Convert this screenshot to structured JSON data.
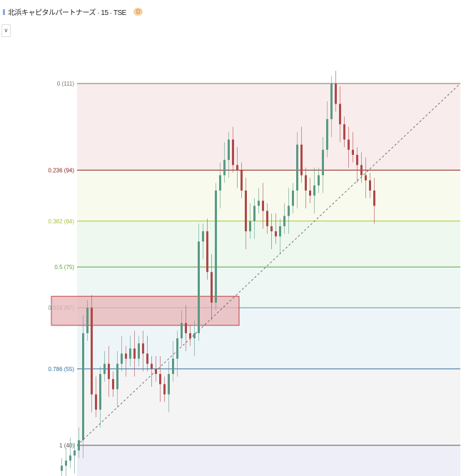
{
  "header": {
    "title": "北浜キャピタルパートナーズ · 15 · TSE",
    "badge": "D",
    "dropdown": "v"
  },
  "chart_data": {
    "type": "candlestick",
    "ylim": [
      36,
      111
    ],
    "fib_levels": [
      {
        "label": "0 (111)",
        "ratio": 0,
        "price": 111,
        "line": "#8a6a6a",
        "fill": "#f8ecec"
      },
      {
        "label": "0.236 (94)",
        "ratio": 0.236,
        "price": 94,
        "line": "#8b1a1a",
        "fill": "#f8faee"
      },
      {
        "label": "0.382 (84)",
        "ratio": 0.382,
        "price": 84,
        "line": "#a6c43a",
        "fill": "#eef8ee"
      },
      {
        "label": "0.5 (75)",
        "ratio": 0.5,
        "price": 75,
        "line": "#5aa03c",
        "fill": "#eef7f4"
      },
      {
        "label": "0.618 (67)",
        "ratio": 0.618,
        "price": 67,
        "line": "#5c9c8c",
        "fill": "#eef5f8"
      },
      {
        "label": "0.786 (55)",
        "ratio": 0.786,
        "price": 55,
        "line": "#2e6e9e",
        "fill": "#f4f4f4"
      },
      {
        "label": "1 (40)",
        "ratio": 1,
        "price": 40,
        "line": "#555555",
        "fill": "#eeeef8"
      }
    ],
    "zone": {
      "from": 62,
      "to": 67,
      "color": "#e8b4b8",
      "border": "#c04040"
    },
    "trendline": {
      "from": 40,
      "to": 111
    },
    "closes": [
      36,
      37,
      38,
      39,
      41,
      62,
      67,
      50,
      47,
      54,
      56,
      53,
      51,
      56,
      58,
      57,
      59,
      57,
      60,
      58,
      56,
      55,
      54,
      52,
      50,
      54,
      57,
      61,
      64,
      62,
      61,
      62,
      80,
      82,
      74,
      68,
      90,
      93,
      96,
      100,
      95,
      94,
      90,
      82,
      84,
      87,
      88,
      86,
      83,
      82,
      81,
      83,
      85,
      87,
      90,
      99,
      93,
      90,
      89,
      91,
      93,
      98,
      104,
      111,
      107,
      103,
      100,
      98,
      97,
      95,
      93,
      92,
      90,
      87
    ],
    "up_color": "#5a9a84",
    "down_color": "#b04848"
  }
}
